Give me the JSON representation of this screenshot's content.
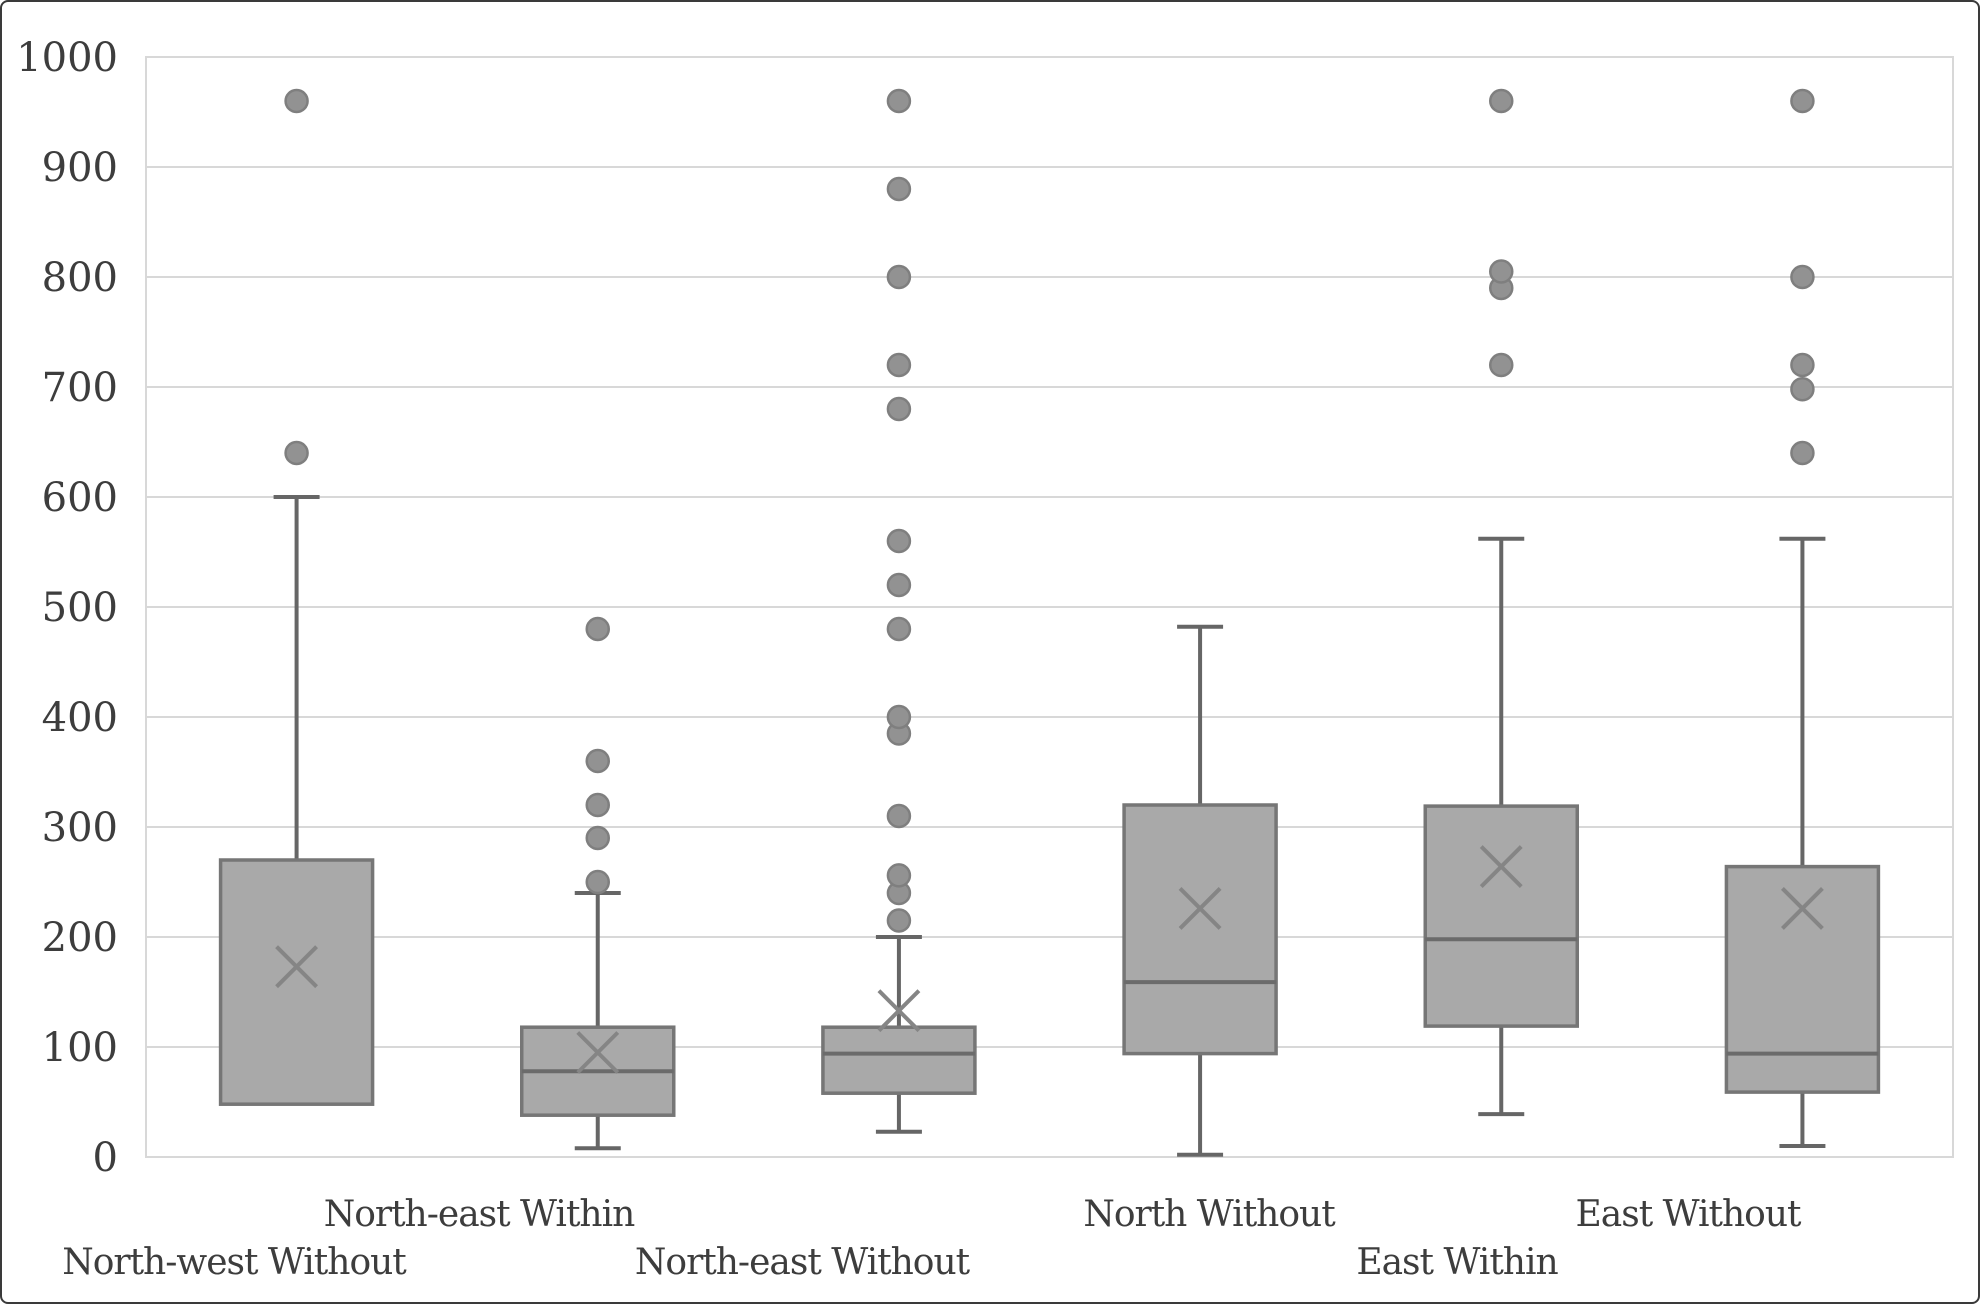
{
  "figure": {
    "kind": "box-plot-chart",
    "title": "",
    "background": "#ffffff",
    "border_color": "#3a3a3a"
  },
  "y_axis": {
    "min": 0,
    "max": 1000,
    "step": 100,
    "tick_labels": [
      "0",
      "100",
      "200",
      "300",
      "400",
      "500",
      "600",
      "700",
      "800",
      "900",
      "1000"
    ]
  },
  "chart_data": {
    "type": "box",
    "title": "",
    "xlabel": "",
    "ylabel": "",
    "ylim": [
      0,
      1000
    ],
    "grid": true,
    "legend": false,
    "categories": [
      "North-west Without",
      "North-east Within",
      "North-east Without",
      "North Without",
      "East Within",
      "East Without"
    ],
    "label_rows": [
      "lower",
      "upper",
      "lower",
      "upper",
      "lower",
      "upper"
    ],
    "series": [
      {
        "name": "North-west Without",
        "whisker_low": 48,
        "q1": 48,
        "median": null,
        "q3": 270,
        "whisker_high": 600,
        "mean": 173,
        "outliers": [
          640,
          960
        ]
      },
      {
        "name": "North-east Within",
        "whisker_low": 8,
        "q1": 38,
        "median": 78,
        "q3": 118,
        "whisker_high": 240,
        "mean": 95,
        "outliers": [
          250,
          290,
          320,
          360,
          480
        ]
      },
      {
        "name": "North-east Without",
        "whisker_low": 23,
        "q1": 58,
        "median": 94,
        "q3": 118,
        "whisker_high": 200,
        "mean": 133,
        "outliers": [
          215,
          240,
          256,
          310,
          385,
          400,
          480,
          520,
          560,
          680,
          720,
          800,
          880,
          960
        ]
      },
      {
        "name": "North Without",
        "whisker_low": 2,
        "q1": 94,
        "median": 159,
        "q3": 320,
        "whisker_high": 482,
        "mean": 226,
        "outliers": []
      },
      {
        "name": "East Within",
        "whisker_low": 39,
        "q1": 119,
        "median": 198,
        "q3": 319,
        "whisker_high": 562,
        "mean": 264,
        "outliers": [
          720,
          790,
          805,
          960
        ]
      },
      {
        "name": "East Without",
        "whisker_low": 10,
        "q1": 59,
        "median": 94,
        "q3": 264,
        "whisker_high": 562,
        "mean": 226,
        "outliers": [
          640,
          698,
          720,
          800,
          960
        ]
      }
    ]
  },
  "colors": {
    "box_fill": "#a9a9a9",
    "box_border": "#767676",
    "median_line": "#6b6b6b",
    "whisker": "#666666",
    "mean_marker": "#858585",
    "outlier_fill": "#929292",
    "outlier_stroke": "#7f7f7f",
    "gridline": "#d8d8d8",
    "tick_text": "#3d3d3d"
  }
}
